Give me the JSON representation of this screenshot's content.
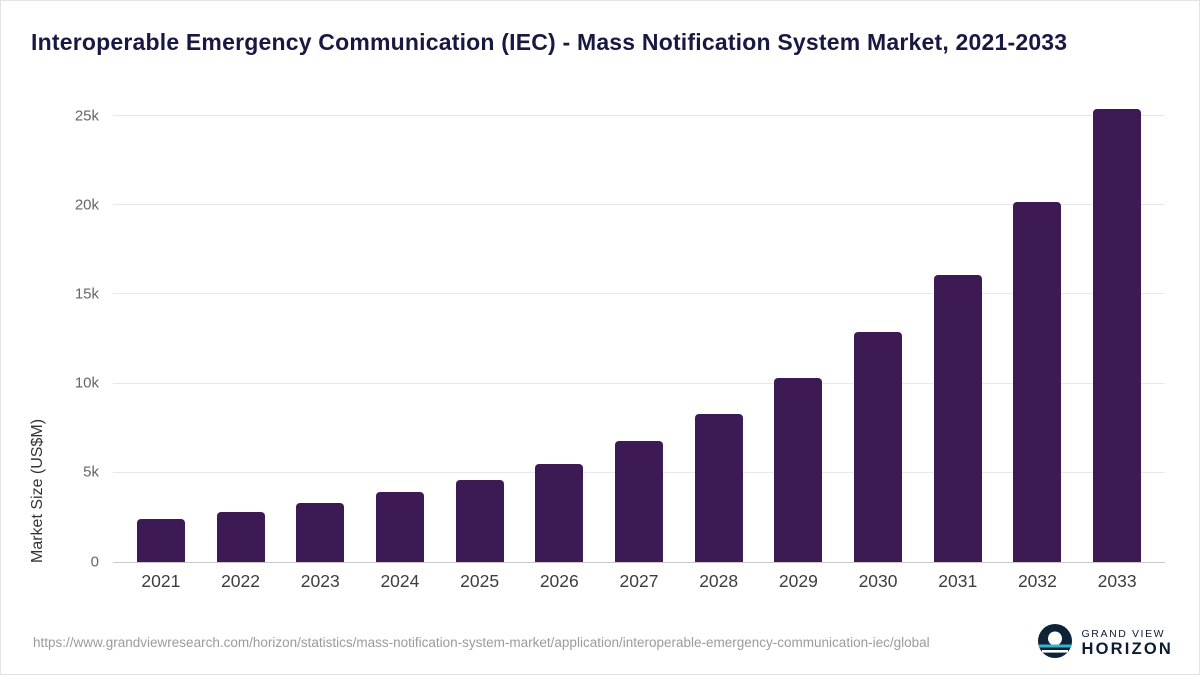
{
  "title": "Interoperable Emergency Communication (IEC) - Mass Notification System Market, 2021-2033",
  "chart_data": {
    "type": "bar",
    "categories": [
      "2021",
      "2022",
      "2023",
      "2024",
      "2025",
      "2026",
      "2027",
      "2028",
      "2029",
      "2030",
      "2031",
      "2032",
      "2033"
    ],
    "values": [
      2400,
      2800,
      3300,
      3900,
      4600,
      5500,
      6800,
      8300,
      10300,
      12900,
      16100,
      20200,
      25400
    ],
    "title": "Interoperable Emergency Communication (IEC) - Mass Notification System Market, 2021-2033",
    "xlabel": "",
    "ylabel": "Market Size (US$M)",
    "ylim": [
      0,
      25400
    ],
    "yticks": [
      0,
      5000,
      10000,
      15000,
      20000,
      25000
    ],
    "ytick_labels": [
      "0",
      "5k",
      "10k",
      "15k",
      "20k",
      "25k"
    ],
    "bar_color": "#3e1a54",
    "grid": true,
    "legend": false
  },
  "footer": {
    "source_url": "https://www.grandviewresearch.com/horizon/statistics/mass-notification-system-market/application/interoperable-emergency-communication-iec/global",
    "logo_text_top": "GRAND VIEW",
    "logo_text_bottom": "HORIZON"
  },
  "colors": {
    "title_text": "#191843",
    "bar": "#3e1a54",
    "gridline": "#e8e8e8",
    "source_text": "#9b9b9b",
    "logo_teal": "#35b6cf",
    "logo_navy": "#0e2337"
  }
}
